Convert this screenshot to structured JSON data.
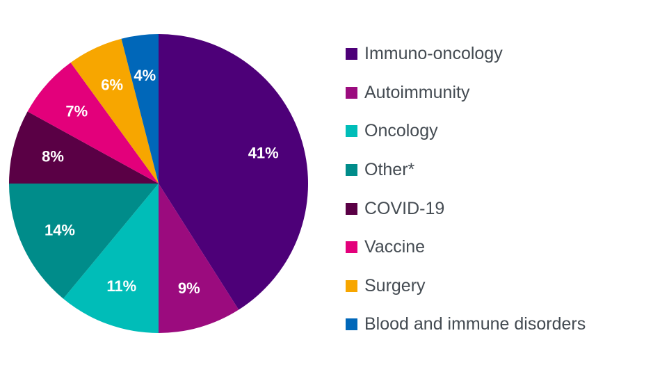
{
  "chart_data": {
    "type": "pie",
    "title": "",
    "unit": "%",
    "start_angle_deg": 0,
    "direction": "clockwise",
    "legend_position": "right",
    "slices": [
      {
        "label": "Immuno-oncology",
        "value": 41,
        "value_label": "41%",
        "color": "#4d0078"
      },
      {
        "label": "Autoimmunity",
        "value": 9,
        "value_label": "9%",
        "color": "#9b0b7e"
      },
      {
        "label": "Oncology",
        "value": 11,
        "value_label": "11%",
        "color": "#00bdb8"
      },
      {
        "label": "Other*",
        "value": 14,
        "value_label": "14%",
        "color": "#008c8a"
      },
      {
        "label": "COVID-19",
        "value": 8,
        "value_label": "8%",
        "color": "#5a0045"
      },
      {
        "label": "Vaccine",
        "value": 7,
        "value_label": "7%",
        "color": "#e3007b"
      },
      {
        "label": "Surgery",
        "value": 6,
        "value_label": "6%",
        "color": "#f7a600"
      },
      {
        "label": "Blood and immune disorders",
        "value": 4,
        "value_label": "4%",
        "color": "#0067b9"
      }
    ]
  }
}
